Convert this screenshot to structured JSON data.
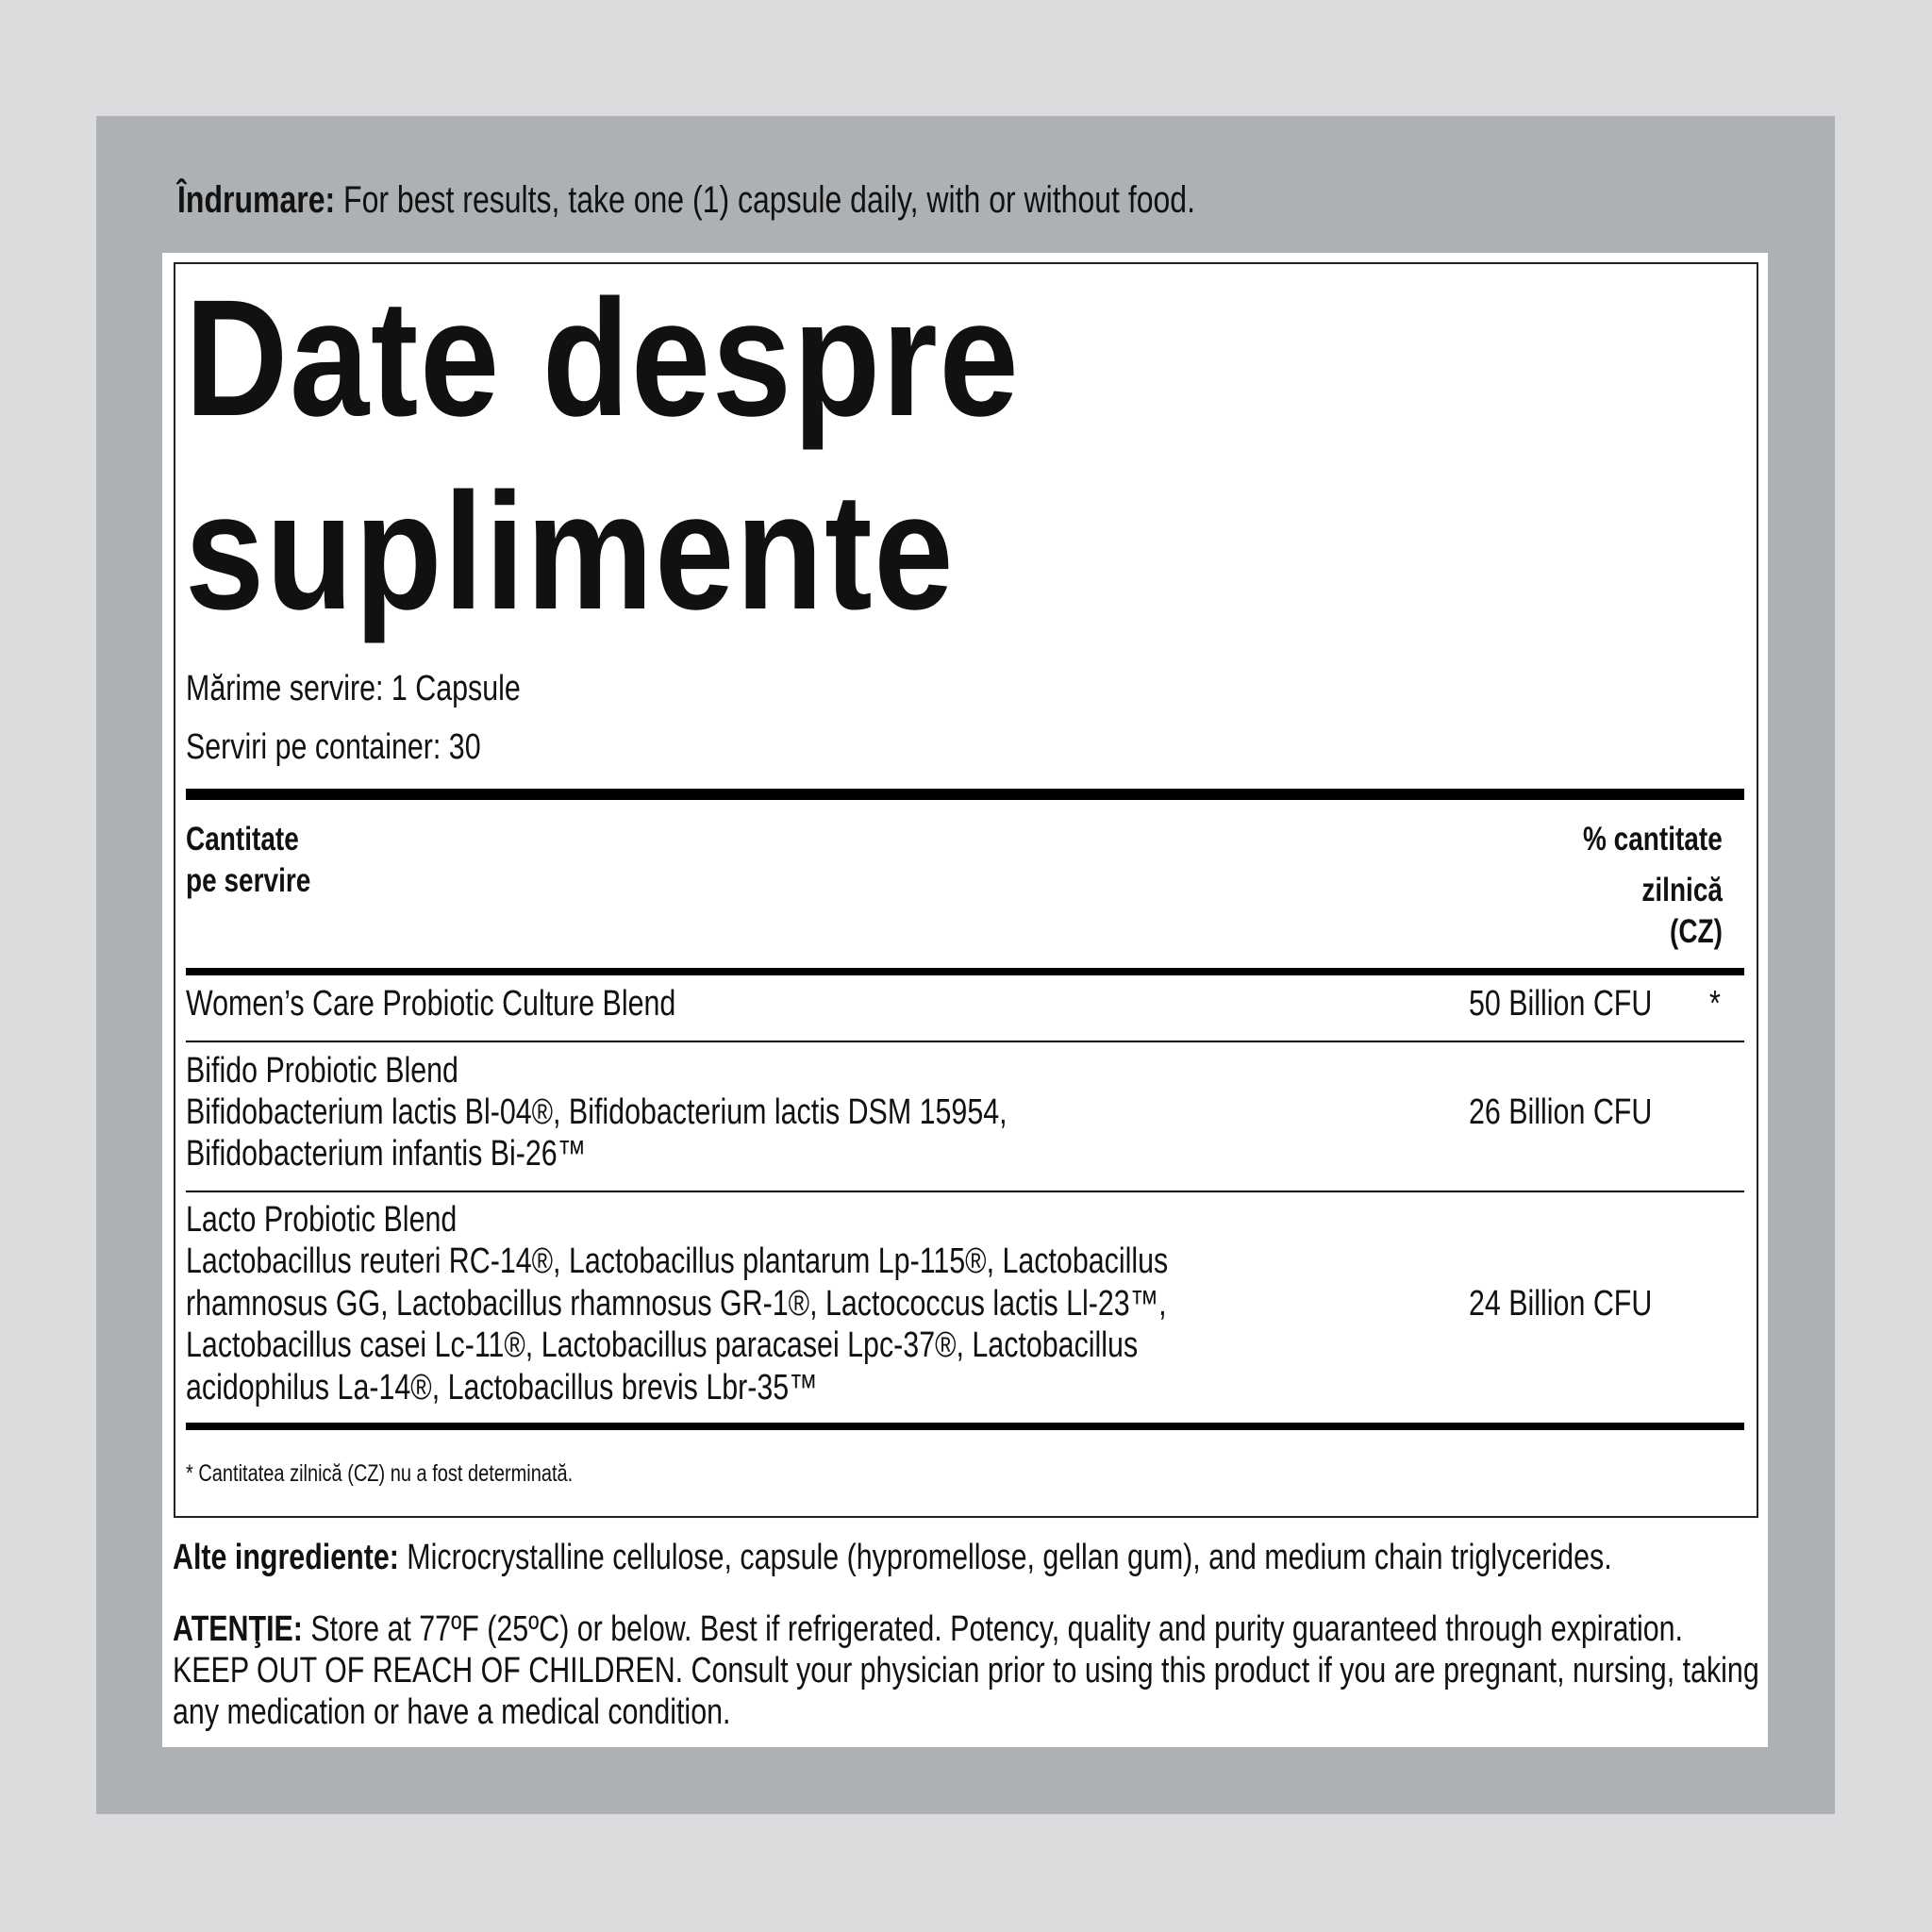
{
  "directions": {
    "label": "Îndrumare:",
    "text": " For best results, take one (1) capsule daily, with or without food."
  },
  "facts": {
    "title_line1": "Date despre",
    "title_line2": "suplimente",
    "serving_size": "Mărime servire: 1 Capsule",
    "servings_per_container": "Serviri pe container: 30",
    "header_left": [
      "Cantitate",
      "pe servire"
    ],
    "header_right": [
      "% cantitate",
      "zilnică",
      "(CZ)"
    ],
    "rows": [
      {
        "name_lines": [
          "Women’s Care Probiotic Culture Blend"
        ],
        "amount": "50 Billion CFU",
        "dv": "*"
      },
      {
        "name_lines": [
          "Bifido Probiotic Blend",
          "Bifidobacterium lactis Bl-04®, Bifidobacterium lactis DSM 15954,",
          "Bifidobacterium infantis Bi-26™"
        ],
        "amount": "26 Billion CFU",
        "dv": ""
      },
      {
        "name_lines": [
          "Lacto Probiotic Blend",
          "Lactobacillus reuteri RC-14®, Lactobacillus plantarum Lp-115®, Lactobacillus",
          "rhamnosus GG, Lactobacillus rhamnosus GR-1®, Lactococcus lactis Ll-23™,",
          "Lactobacillus casei Lc-11®, Lactobacillus paracasei Lpc-37®, Lactobacillus",
          "acidophilus La-14®, Lactobacillus brevis Lbr-35™"
        ],
        "amount": "24 Billion CFU",
        "dv": ""
      }
    ],
    "footnote": "* Cantitatea zilnică (CZ) nu a fost determinată."
  },
  "other_ingredients": {
    "label": "Alte ingrediente:",
    "text": " Microcrystalline cellulose, capsule (hypromellose, gellan gum), and medium chain triglycerides."
  },
  "warning": {
    "label": "ATENŢIE:",
    "lines": [
      " Store at 77ºF (25ºC) or below. Best if refrigerated. Potency, quality and purity guaranteed through expiration.",
      "KEEP OUT OF REACH OF CHILDREN. Consult your physician prior to using this product if you are pregnant, nursing, taking",
      "any medication or have a medical condition."
    ]
  }
}
